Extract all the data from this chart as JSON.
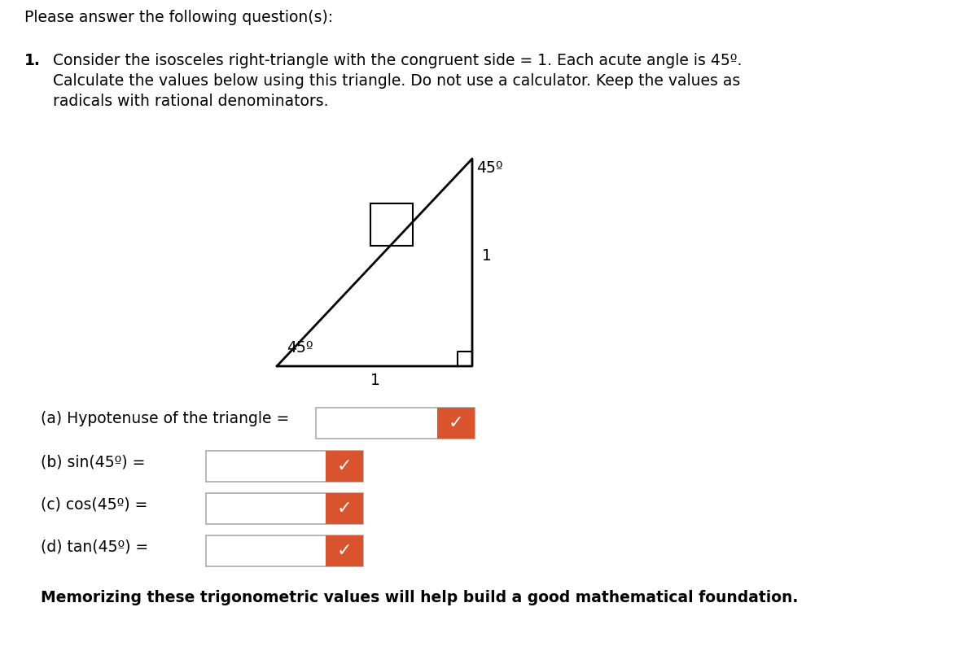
{
  "bg_color": "#ffffff",
  "header_text": "Please answer the following question(s):",
  "question_number": "1.",
  "question_text_line1": "Consider the isosceles right-triangle with the congruent side = 1. Each acute angle is 45º.",
  "question_text_line2": "Calculate the values below using this triangle. Do not use a calculator. Keep the values as",
  "question_text_line3": "radicals with rational denominators.",
  "angle_top_label": "45º",
  "angle_bottom_left_label": "45º",
  "side_right_label": "1",
  "side_bottom_label": "1",
  "parts": [
    "(a) Hypotenuse of the triangle =",
    "(b) sin(45º) =",
    "(c) cos(45º) =",
    "(d) tan(45º) ="
  ],
  "footer_text": "Memorizing these trigonometric values will help build a good mathematical foundation.",
  "check_color": "#d9532c",
  "font_size": 13.5
}
